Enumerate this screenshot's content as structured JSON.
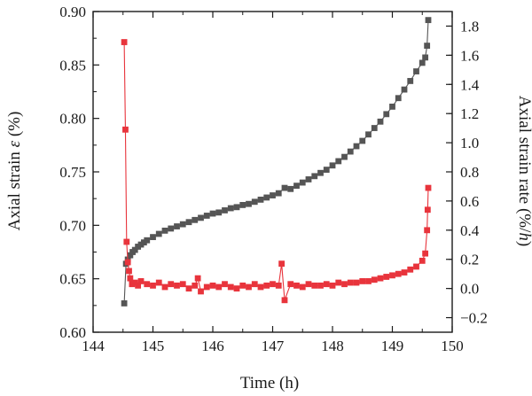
{
  "chart_data": {
    "type": "scatter",
    "xlabel": "Time (h)",
    "ylabel_left_prefix": "Axial strain ",
    "ylabel_left_symbol": "ε",
    "ylabel_left_suffix": " (%)",
    "ylabel_right_prefix": "Axial strain rate (%/",
    "ylabel_right_symbol": "h",
    "ylabel_right_suffix": ")",
    "xlim": [
      144,
      150
    ],
    "ylim_left": [
      0.6,
      0.9
    ],
    "ylim_right": [
      -0.3,
      1.9
    ],
    "xticks": [
      "144",
      "145",
      "146",
      "147",
      "148",
      "149",
      "150"
    ],
    "yticks_left": [
      "0.60",
      "0.65",
      "0.70",
      "0.75",
      "0.80",
      "0.85",
      "0.90"
    ],
    "yticks_right": [
      "−0.2",
      "0.0",
      "0.2",
      "0.4",
      "0.6",
      "0.8",
      "1.0",
      "1.2",
      "1.4",
      "1.6",
      "1.8"
    ],
    "grid": false,
    "series": [
      {
        "axis": "left",
        "color": "#555555",
        "marker": "square",
        "points": [
          [
            144.52,
            0.627
          ],
          [
            144.55,
            0.664
          ],
          [
            144.58,
            0.668
          ],
          [
            144.62,
            0.672
          ],
          [
            144.66,
            0.675
          ],
          [
            144.7,
            0.677
          ],
          [
            144.75,
            0.68
          ],
          [
            144.8,
            0.682
          ],
          [
            144.85,
            0.684
          ],
          [
            144.9,
            0.686
          ],
          [
            145.0,
            0.689
          ],
          [
            145.1,
            0.692
          ],
          [
            145.2,
            0.695
          ],
          [
            145.3,
            0.697
          ],
          [
            145.4,
            0.699
          ],
          [
            145.5,
            0.701
          ],
          [
            145.6,
            0.703
          ],
          [
            145.7,
            0.705
          ],
          [
            145.8,
            0.707
          ],
          [
            145.9,
            0.709
          ],
          [
            146.0,
            0.711
          ],
          [
            146.1,
            0.712
          ],
          [
            146.2,
            0.714
          ],
          [
            146.3,
            0.716
          ],
          [
            146.4,
            0.717
          ],
          [
            146.5,
            0.719
          ],
          [
            146.6,
            0.72
          ],
          [
            146.7,
            0.722
          ],
          [
            146.8,
            0.724
          ],
          [
            146.9,
            0.726
          ],
          [
            147.0,
            0.728
          ],
          [
            147.1,
            0.73
          ],
          [
            147.2,
            0.735
          ],
          [
            147.3,
            0.734
          ],
          [
            147.4,
            0.737
          ],
          [
            147.5,
            0.74
          ],
          [
            147.6,
            0.743
          ],
          [
            147.7,
            0.746
          ],
          [
            147.8,
            0.749
          ],
          [
            147.9,
            0.752
          ],
          [
            148.0,
            0.756
          ],
          [
            148.1,
            0.76
          ],
          [
            148.2,
            0.764
          ],
          [
            148.3,
            0.769
          ],
          [
            148.4,
            0.774
          ],
          [
            148.5,
            0.779
          ],
          [
            148.6,
            0.785
          ],
          [
            148.7,
            0.791
          ],
          [
            148.8,
            0.797
          ],
          [
            148.9,
            0.804
          ],
          [
            149.0,
            0.811
          ],
          [
            149.1,
            0.819
          ],
          [
            149.2,
            0.827
          ],
          [
            149.3,
            0.835
          ],
          [
            149.4,
            0.844
          ],
          [
            149.5,
            0.852
          ],
          [
            149.55,
            0.857
          ],
          [
            149.58,
            0.868
          ],
          [
            149.6,
            0.892
          ]
        ]
      },
      {
        "axis": "right",
        "color": "#e8343c",
        "marker": "square",
        "points": [
          [
            144.52,
            1.69
          ],
          [
            144.54,
            1.09
          ],
          [
            144.56,
            0.32
          ],
          [
            144.58,
            0.18
          ],
          [
            144.6,
            0.12
          ],
          [
            144.62,
            0.07
          ],
          [
            144.65,
            0.03
          ],
          [
            144.7,
            0.04
          ],
          [
            144.75,
            0.02
          ],
          [
            144.8,
            0.05
          ],
          [
            144.9,
            0.03
          ],
          [
            145.0,
            0.02
          ],
          [
            145.1,
            0.04
          ],
          [
            145.2,
            0.01
          ],
          [
            145.3,
            0.03
          ],
          [
            145.4,
            0.02
          ],
          [
            145.5,
            0.03
          ],
          [
            145.6,
            0.0
          ],
          [
            145.7,
            0.02
          ],
          [
            145.75,
            0.07
          ],
          [
            145.8,
            -0.02
          ],
          [
            145.9,
            0.01
          ],
          [
            146.0,
            0.02
          ],
          [
            146.1,
            0.01
          ],
          [
            146.2,
            0.03
          ],
          [
            146.3,
            0.01
          ],
          [
            146.4,
            0.0
          ],
          [
            146.5,
            0.02
          ],
          [
            146.6,
            0.01
          ],
          [
            146.7,
            0.03
          ],
          [
            146.8,
            0.01
          ],
          [
            146.9,
            0.02
          ],
          [
            147.0,
            0.03
          ],
          [
            147.1,
            0.02
          ],
          [
            147.15,
            0.17
          ],
          [
            147.2,
            -0.08
          ],
          [
            147.3,
            0.03
          ],
          [
            147.4,
            0.02
          ],
          [
            147.5,
            0.01
          ],
          [
            147.6,
            0.03
          ],
          [
            147.7,
            0.02
          ],
          [
            147.8,
            0.02
          ],
          [
            147.9,
            0.03
          ],
          [
            148.0,
            0.02
          ],
          [
            148.1,
            0.04
          ],
          [
            148.2,
            0.03
          ],
          [
            148.3,
            0.04
          ],
          [
            148.4,
            0.04
          ],
          [
            148.5,
            0.05
          ],
          [
            148.6,
            0.05
          ],
          [
            148.7,
            0.06
          ],
          [
            148.8,
            0.07
          ],
          [
            148.9,
            0.08
          ],
          [
            149.0,
            0.09
          ],
          [
            149.1,
            0.1
          ],
          [
            149.2,
            0.11
          ],
          [
            149.3,
            0.13
          ],
          [
            149.4,
            0.15
          ],
          [
            149.5,
            0.19
          ],
          [
            149.55,
            0.24
          ],
          [
            149.58,
            0.4
          ],
          [
            149.59,
            0.54
          ],
          [
            149.6,
            0.69
          ]
        ]
      }
    ]
  }
}
